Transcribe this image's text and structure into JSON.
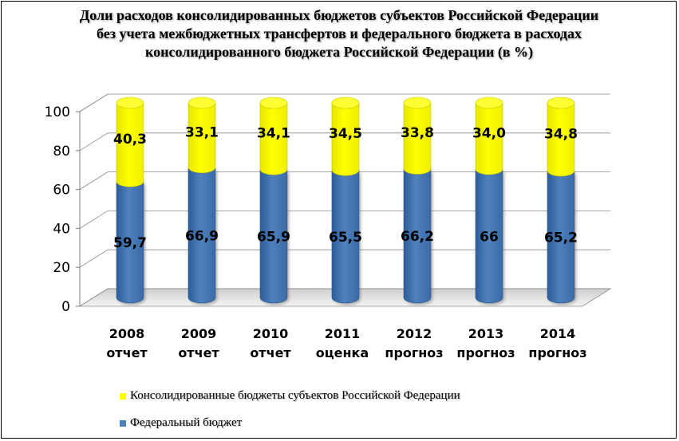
{
  "chart_data": {
    "type": "bar",
    "stacked": true,
    "title": "Доли расходов консолидированных бюджетов субъектов Российской Федерации  без учета межбюджетных трансфертов  и федерального бюджета в расходах консолидированного бюджета Российской Федерации (в %)",
    "categories": [
      {
        "year": "2008",
        "note": "отчет"
      },
      {
        "year": "2009",
        "note": "отчет"
      },
      {
        "year": "2010",
        "note": "отчет"
      },
      {
        "year": "2011",
        "note": "оценка"
      },
      {
        "year": "2012",
        "note": "прогноз"
      },
      {
        "year": "2013",
        "note": "прогноз"
      },
      {
        "year": "2014",
        "note": "прогноз"
      }
    ],
    "series": [
      {
        "name": "Федеральный бюджет",
        "color": "#4F81BD",
        "values": [
          59.7,
          66.9,
          65.9,
          65.5,
          66.2,
          66,
          65.2
        ],
        "labels": [
          "59,7",
          "66,9",
          "65,9",
          "65,5",
          "66,2",
          "66",
          "65,2"
        ]
      },
      {
        "name": "Консолидированные бюджеты субъектов Российской Федерации",
        "color": "#FFFF00",
        "values": [
          40.3,
          33.1,
          34.1,
          34.5,
          33.8,
          34.0,
          34.8
        ],
        "labels": [
          "40,3",
          "33,1",
          "34,1",
          "34,5",
          "33,8",
          "34,0",
          "34,8"
        ]
      }
    ],
    "ylim": [
      0,
      100
    ],
    "yticks": [
      "0",
      "20",
      "40",
      "60",
      "80",
      "100"
    ],
    "grid": true,
    "legend_placement": "bottom"
  }
}
